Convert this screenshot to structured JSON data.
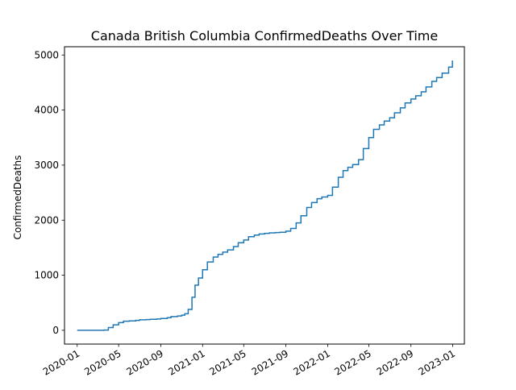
{
  "chart_data": {
    "type": "line",
    "title": "Canada British Columbia ConfirmedDeaths Over Time",
    "xlabel": "",
    "ylabel": "ConfirmedDeaths",
    "x_ticks": [
      "2020-01",
      "2020-05",
      "2020-09",
      "2021-01",
      "2021-05",
      "2021-09",
      "2022-01",
      "2022-05",
      "2022-09",
      "2023-01"
    ],
    "y_ticks": [
      0,
      1000,
      2000,
      3000,
      4000,
      5000
    ],
    "xlim": [
      "2019-11-25",
      "2023-02-04"
    ],
    "ylim": [
      -250,
      5150
    ],
    "grid": false,
    "line_color": "#1f77b4",
    "series": [
      {
        "x": [
          "2020-01-01",
          "2020-02-01",
          "2020-03-01",
          "2020-03-20",
          "2020-04-01",
          "2020-04-15",
          "2020-05-01",
          "2020-05-15",
          "2020-06-01",
          "2020-06-20",
          "2020-07-01",
          "2020-07-20",
          "2020-08-01",
          "2020-08-20",
          "2020-09-01",
          "2020-09-20",
          "2020-10-01",
          "2020-10-20",
          "2020-11-01",
          "2020-11-10",
          "2020-11-20",
          "2020-12-01",
          "2020-12-10",
          "2020-12-20",
          "2021-01-01",
          "2021-01-15",
          "2021-02-01",
          "2021-02-15",
          "2021-03-01",
          "2021-03-15",
          "2021-04-01",
          "2021-04-15",
          "2021-05-01",
          "2021-05-15",
          "2021-06-01",
          "2021-06-15",
          "2021-07-01",
          "2021-07-15",
          "2021-08-01",
          "2021-08-15",
          "2021-09-01",
          "2021-09-15",
          "2021-10-01",
          "2021-10-15",
          "2021-11-01",
          "2021-11-15",
          "2021-12-01",
          "2021-12-15",
          "2022-01-01",
          "2022-01-15",
          "2022-02-01",
          "2022-02-15",
          "2022-03-01",
          "2022-03-15",
          "2022-04-01",
          "2022-04-15",
          "2022-05-01",
          "2022-05-15",
          "2022-06-01",
          "2022-06-15",
          "2022-07-01",
          "2022-07-15",
          "2022-08-01",
          "2022-08-15",
          "2022-09-01",
          "2022-09-15",
          "2022-10-01",
          "2022-10-15",
          "2022-11-01",
          "2022-11-15",
          "2022-12-01",
          "2022-12-20",
          "2022-12-31"
        ],
        "y": [
          0,
          0,
          0,
          5,
          50,
          100,
          140,
          165,
          170,
          180,
          190,
          195,
          200,
          205,
          215,
          230,
          250,
          260,
          275,
          300,
          380,
          600,
          820,
          950,
          1100,
          1240,
          1330,
          1380,
          1420,
          1460,
          1520,
          1590,
          1640,
          1700,
          1730,
          1750,
          1760,
          1770,
          1775,
          1780,
          1800,
          1850,
          1950,
          2080,
          2230,
          2320,
          2390,
          2420,
          2450,
          2600,
          2780,
          2900,
          2960,
          3010,
          3100,
          3300,
          3500,
          3650,
          3730,
          3800,
          3860,
          3950,
          4040,
          4130,
          4200,
          4260,
          4330,
          4420,
          4520,
          4590,
          4670,
          4780,
          4900
        ]
      }
    ]
  }
}
